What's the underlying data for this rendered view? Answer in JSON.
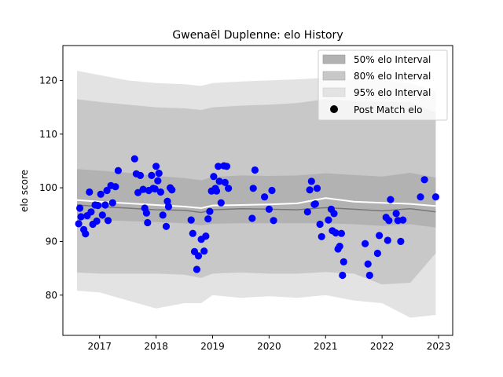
{
  "chart_data": {
    "type": "scatter",
    "title": "Gwenaël Duplenne: elo History",
    "xlabel": "",
    "ylabel": "elo score",
    "xlim": [
      2016.35,
      2023.25
    ],
    "ylim": [
      72.5,
      126.5
    ],
    "x_ticks": [
      2017,
      2018,
      2019,
      2020,
      2021,
      2022,
      2023
    ],
    "x_tick_labels": [
      "2017",
      "2018",
      "2019",
      "2020",
      "2021",
      "2022",
      "2023"
    ],
    "y_ticks": [
      80,
      90,
      100,
      110,
      120
    ],
    "y_tick_labels": [
      "80",
      "90",
      "100",
      "110",
      "120"
    ],
    "grid": false,
    "legend_position": "top-right",
    "legend": [
      {
        "label": "50% elo Interval",
        "color": "#b2b2b2"
      },
      {
        "label": "80% elo Interval",
        "color": "#c8c8c8"
      },
      {
        "label": "95% elo Interval",
        "color": "#e3e3e3"
      },
      {
        "label": "Post Match elo",
        "color": "#000000"
      }
    ],
    "bands": {
      "x": [
        2016.6,
        2017.0,
        2017.5,
        2018.0,
        2018.5,
        2018.8,
        2019.0,
        2019.5,
        2020.0,
        2020.5,
        2021.0,
        2021.5,
        2022.0,
        2022.5,
        2022.95
      ],
      "median": [
        96.8,
        96.5,
        96.2,
        95.9,
        95.8,
        95.4,
        95.9,
        96.1,
        96.0,
        95.9,
        96.3,
        96.0,
        95.7,
        96.1,
        95.5
      ],
      "mean": [
        97.7,
        97.4,
        97.1,
        96.8,
        96.5,
        96.2,
        96.7,
        96.8,
        96.9,
        97.1,
        98.1,
        97.4,
        97.2,
        97.0,
        96.6
      ],
      "p50_low": [
        94.0,
        94.0,
        93.8,
        93.6,
        93.4,
        93.0,
        93.3,
        93.4,
        93.4,
        93.4,
        93.4,
        93.2,
        92.9,
        93.2,
        92.6
      ],
      "p50_high": [
        103.5,
        103.2,
        102.8,
        102.2,
        101.8,
        101.4,
        102.0,
        102.3,
        102.2,
        102.3,
        102.7,
        102.4,
        102.1,
        102.8,
        101.9
      ],
      "p80_low": [
        84.2,
        84.0,
        84.0,
        84.0,
        83.8,
        83.2,
        84.0,
        84.2,
        84.0,
        84.0,
        84.3,
        84.0,
        82.0,
        82.3,
        87.8
      ],
      "p80_high": [
        116.5,
        116.0,
        115.5,
        115.0,
        114.8,
        114.5,
        115.0,
        115.3,
        115.5,
        115.8,
        116.5,
        116.2,
        116.0,
        116.0,
        114.0
      ],
      "p95_low": [
        80.8,
        80.5,
        79.0,
        77.5,
        78.5,
        78.5,
        80.0,
        79.5,
        79.8,
        79.5,
        80.0,
        79.0,
        78.5,
        75.8,
        76.3
      ],
      "p95_high": [
        121.8,
        121.0,
        120.0,
        119.5,
        119.3,
        119.0,
        119.5,
        119.8,
        120.0,
        120.2,
        120.5,
        120.0,
        120.0,
        119.5,
        118.0
      ]
    },
    "points": {
      "name": "Post Match elo",
      "color": "#0000ff",
      "x": [
        2016.63,
        2016.65,
        2016.67,
        2016.72,
        2016.75,
        2016.78,
        2016.82,
        2016.85,
        2016.88,
        2016.92,
        2016.95,
        2016.97,
        2017.02,
        2017.05,
        2017.1,
        2017.13,
        2017.15,
        2017.2,
        2017.23,
        2017.28,
        2017.33,
        2017.62,
        2017.65,
        2017.68,
        2017.72,
        2017.77,
        2017.8,
        2017.83,
        2017.85,
        2017.87,
        2017.92,
        2017.95,
        2017.98,
        2018.0,
        2018.03,
        2018.05,
        2018.08,
        2018.12,
        2018.18,
        2018.2,
        2018.22,
        2018.25,
        2018.28,
        2018.62,
        2018.65,
        2018.68,
        2018.72,
        2018.75,
        2018.8,
        2018.85,
        2018.88,
        2018.92,
        2018.95,
        2018.98,
        2019.02,
        2019.05,
        2019.07,
        2019.1,
        2019.12,
        2019.15,
        2019.2,
        2019.22,
        2019.25,
        2019.28,
        2019.7,
        2019.72,
        2019.75,
        2019.92,
        2020.0,
        2020.05,
        2020.08,
        2020.68,
        2020.72,
        2020.75,
        2020.8,
        2020.82,
        2020.85,
        2020.9,
        2020.93,
        2021.05,
        2021.1,
        2021.12,
        2021.15,
        2021.18,
        2021.22,
        2021.25,
        2021.28,
        2021.3,
        2021.32,
        2021.7,
        2021.75,
        2021.78,
        2021.92,
        2021.95,
        2022.07,
        2022.1,
        2022.12,
        2022.15,
        2022.25,
        2022.28,
        2022.33,
        2022.37,
        2022.68,
        2022.75,
        2022.95
      ],
      "y": [
        93.3,
        96.2,
        94.6,
        92.2,
        91.4,
        94.8,
        99.2,
        95.5,
        93.2,
        96.8,
        93.8,
        96.7,
        98.8,
        94.9,
        96.8,
        99.5,
        93.9,
        100.4,
        97.2,
        100.2,
        103.2,
        105.4,
        102.6,
        99.1,
        102.3,
        99.7,
        96.2,
        95.3,
        93.5,
        99.5,
        102.3,
        99.9,
        99.8,
        104.0,
        101.3,
        102.7,
        99.2,
        94.9,
        92.8,
        97.5,
        96.5,
        100.0,
        99.6,
        94.0,
        91.5,
        88.1,
        84.8,
        87.3,
        90.4,
        88.2,
        91.0,
        94.2,
        95.6,
        99.4,
        102.1,
        99.9,
        99.4,
        104.0,
        101.2,
        97.2,
        104.1,
        101.0,
        104.0,
        99.9,
        94.3,
        99.9,
        103.3,
        98.3,
        96.0,
        99.5,
        93.9,
        95.5,
        99.6,
        101.2,
        96.9,
        97.0,
        99.9,
        93.2,
        90.9,
        94.0,
        96.0,
        92.0,
        95.2,
        91.6,
        88.6,
        89.1,
        91.5,
        83.7,
        86.2,
        89.6,
        85.8,
        83.7,
        87.8,
        91.1,
        94.5,
        90.2,
        93.9,
        97.8,
        95.2,
        93.9,
        90.0,
        94.0,
        98.3,
        101.5,
        98.3
      ]
    }
  }
}
